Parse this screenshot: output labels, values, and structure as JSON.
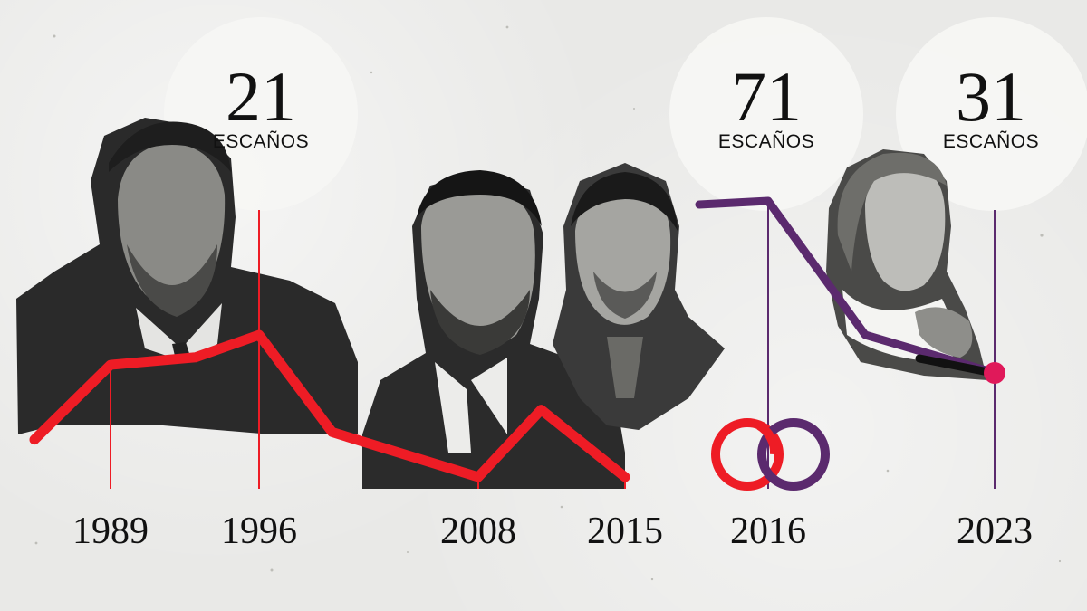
{
  "chart_data": {
    "type": "line",
    "series": [
      {
        "color": "#ee1c25",
        "points": [
          {
            "x": 1986,
            "y": 7
          },
          {
            "x": 1989,
            "y": 17
          },
          {
            "x": 1993,
            "y": 18
          },
          {
            "x": 1996,
            "y": 21
          },
          {
            "x": 2000,
            "y": 8
          },
          {
            "x": 2004,
            "y": 5
          },
          {
            "x": 2008,
            "y": 2
          },
          {
            "x": 2011,
            "y": 11
          },
          {
            "x": 2015,
            "y": 2
          }
        ]
      },
      {
        "color": "#5b2a6e",
        "points": [
          {
            "x": 2016,
            "y": 71
          },
          {
            "x": 2019,
            "y": 42
          },
          {
            "x": 2023,
            "y": 31
          }
        ]
      }
    ],
    "year_ticks": [
      {
        "year": "1989",
        "x": 1989,
        "y": 17,
        "color": "#ee1c25"
      },
      {
        "year": "1996",
        "x": 1996,
        "y": 21,
        "color": "#ee1c25"
      },
      {
        "year": "2008",
        "x": 2008,
        "y": 2,
        "color": "#ee1c25"
      },
      {
        "year": "2015",
        "x": 2015,
        "y": 2,
        "color": "#ee1c25"
      },
      {
        "year": "2016",
        "x": 2016,
        "y": 71,
        "color": "#5b2a6e"
      },
      {
        "year": "2023",
        "x": 2023,
        "y": 31,
        "color": "#5b2a6e"
      }
    ],
    "seat_callouts": [
      {
        "value": "21",
        "label": "ESCAÑOS",
        "x": 1996
      },
      {
        "value": "71",
        "label": "ESCAÑOS",
        "x": 2016
      },
      {
        "value": "31",
        "label": "ESCAÑOS",
        "x": 2023
      }
    ],
    "end_marker": {
      "x": 2023,
      "y": 31,
      "color": "#e0195a"
    },
    "colors": {
      "red": "#ee1c25",
      "purple": "#5b2a6e",
      "black": "#111111"
    }
  },
  "photos": [
    {
      "icon": "portrait-man-beard-icon"
    },
    {
      "icon": "portrait-young-man-icon"
    },
    {
      "icon": "portrait-man-ponytail-icon"
    },
    {
      "icon": "portrait-woman-smiling-icon"
    }
  ],
  "logo": {
    "icon": "interlocking-rings-logo-icon",
    "colors": [
      "#ee1c25",
      "#5b2a6e"
    ]
  }
}
